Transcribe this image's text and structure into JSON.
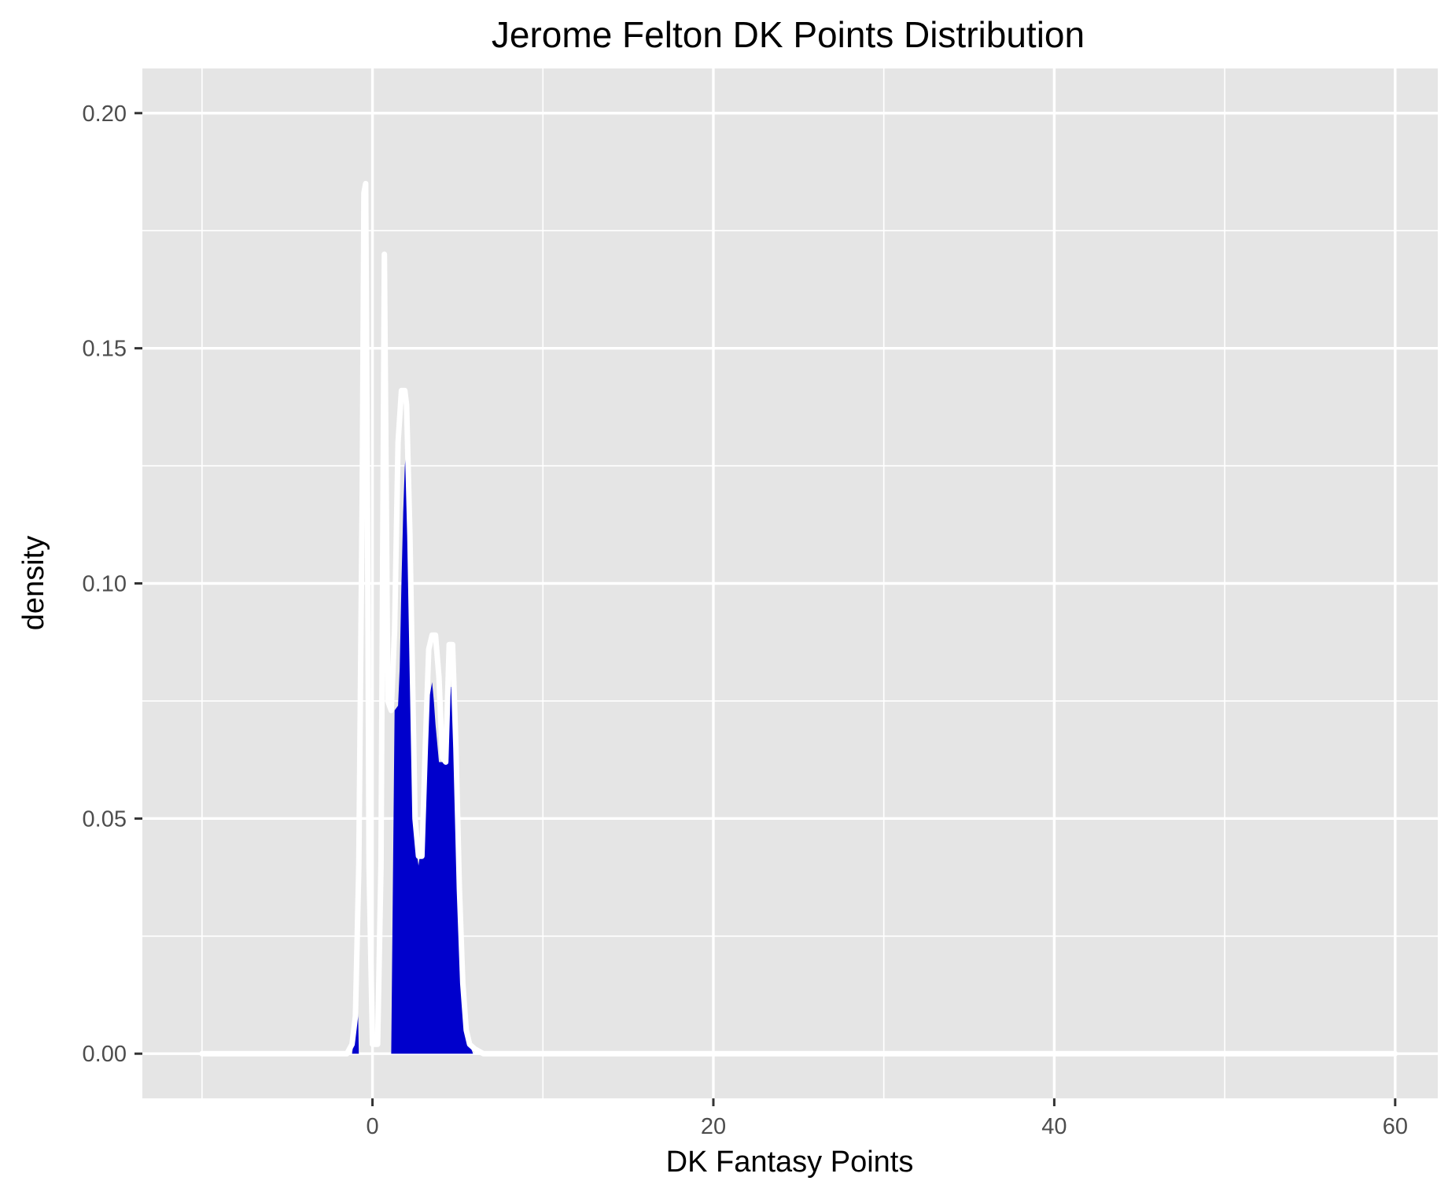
{
  "chart_data": {
    "type": "area",
    "title": "Jerome Felton DK Points Distribution",
    "xlabel": "DK Fantasy Points",
    "ylabel": "density",
    "xlim": [
      -13.5,
      62.5
    ],
    "ylim": [
      -0.0095,
      0.2095
    ],
    "x_ticks": [
      0,
      20,
      40,
      60
    ],
    "x_tick_labels": [
      "0",
      "20",
      "40",
      "60"
    ],
    "y_ticks": [
      0.0,
      0.05,
      0.1,
      0.15,
      0.2
    ],
    "y_tick_labels": [
      "0.00",
      "0.05",
      "0.10",
      "0.15",
      "0.20"
    ],
    "x_minor_gridlines": [
      -10,
      10,
      30,
      50
    ],
    "y_minor_gridlines": [
      0.025,
      0.075,
      0.125,
      0.175
    ],
    "grid": true,
    "legend": "none",
    "colors": {
      "panel_background": "#e5e5e5",
      "gridline": "#ffffff",
      "fill": "#0000cc",
      "density_line": "#ffffff"
    },
    "density": {
      "x": [
        -10,
        -1.5,
        -1.2,
        -1.0,
        -0.8,
        -0.6,
        -0.5,
        -0.4,
        -0.3,
        -0.2,
        0.0,
        0.3,
        0.5,
        0.7,
        0.9,
        1.1,
        1.3,
        1.5,
        1.7,
        1.9,
        2.0,
        2.2,
        2.5,
        2.7,
        2.9,
        3.1,
        3.3,
        3.5,
        3.7,
        3.9,
        4.1,
        4.3,
        4.5,
        4.7,
        4.9,
        5.1,
        5.3,
        5.5,
        5.7,
        6.0,
        6.5,
        60
      ],
      "y": [
        0,
        0,
        0.002,
        0.008,
        0.04,
        0.12,
        0.183,
        0.185,
        0.12,
        0.04,
        0.002,
        0.002,
        0.04,
        0.17,
        0.075,
        0.073,
        0.09,
        0.13,
        0.141,
        0.141,
        0.138,
        0.11,
        0.05,
        0.042,
        0.042,
        0.065,
        0.086,
        0.089,
        0.089,
        0.08,
        0.063,
        0.062,
        0.087,
        0.087,
        0.065,
        0.035,
        0.015,
        0.005,
        0.002,
        0.001,
        0,
        0
      ]
    },
    "filled_segments": [
      {
        "x": [
          -1.2,
          -1.0,
          -0.9,
          -0.8
        ],
        "y": [
          0,
          0.005,
          0.02,
          0
        ]
      },
      {
        "x": [
          1.1,
          1.3,
          1.5,
          1.6,
          1.7,
          1.8,
          1.9,
          2.0,
          2.1,
          2.3,
          2.5,
          2.7,
          2.9,
          3.1,
          3.3,
          3.5,
          3.6,
          3.7,
          3.9,
          4.1,
          4.3,
          4.5,
          4.6,
          4.7,
          4.8,
          4.9,
          5.1,
          5.3,
          5.5,
          5.7,
          5.9
        ],
        "y": [
          0,
          0.073,
          0.074,
          0.082,
          0.1,
          0.115,
          0.125,
          0.129,
          0.12,
          0.08,
          0.045,
          0.04,
          0.045,
          0.062,
          0.075,
          0.079,
          0.075,
          0.07,
          0.062,
          0.062,
          0.065,
          0.072,
          0.078,
          0.078,
          0.07,
          0.05,
          0.03,
          0.015,
          0.006,
          0.002,
          0
        ]
      }
    ]
  }
}
